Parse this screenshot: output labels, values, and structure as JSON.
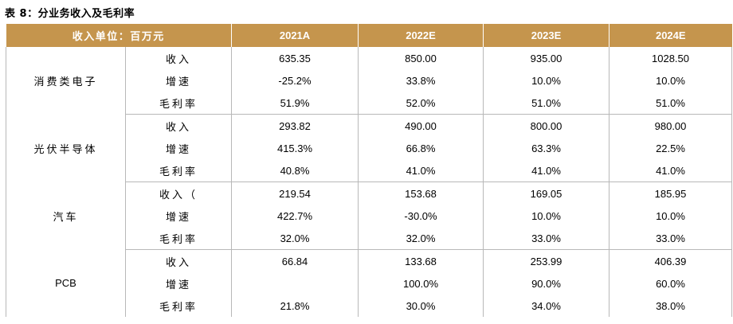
{
  "caption": "表 8：分业务收入及毛利率",
  "header": {
    "unit": "收入单位：百万元",
    "years": [
      "2021A",
      "2022E",
      "2023E",
      "2024E"
    ]
  },
  "segments": [
    {
      "name": "消费类电子",
      "rows": [
        {
          "metric": "收入",
          "values": [
            "635.35",
            "850.00",
            "935.00",
            "1028.50"
          ]
        },
        {
          "metric": "增速",
          "values": [
            "-25.2%",
            "33.8%",
            "10.0%",
            "10.0%"
          ]
        },
        {
          "metric": "毛利率",
          "values": [
            "51.9%",
            "52.0%",
            "51.0%",
            "51.0%"
          ]
        }
      ]
    },
    {
      "name": "光伏半导体",
      "rows": [
        {
          "metric": "收入",
          "values": [
            "293.82",
            "490.00",
            "800.00",
            "980.00"
          ]
        },
        {
          "metric": "增速",
          "values": [
            "415.3%",
            "66.8%",
            "63.3%",
            "22.5%"
          ]
        },
        {
          "metric": "毛利率",
          "values": [
            "40.8%",
            "41.0%",
            "41.0%",
            "41.0%"
          ]
        }
      ]
    },
    {
      "name": "汽车",
      "rows": [
        {
          "metric": "收入（",
          "values": [
            "219.54",
            "153.68",
            "169.05",
            "185.95"
          ]
        },
        {
          "metric": "增速",
          "values": [
            "422.7%",
            "-30.0%",
            "10.0%",
            "10.0%"
          ]
        },
        {
          "metric": "毛利率",
          "values": [
            "32.0%",
            "32.0%",
            "33.0%",
            "33.0%"
          ]
        }
      ]
    },
    {
      "name": "PCB",
      "rows": [
        {
          "metric": "收入",
          "values": [
            "66.84",
            "133.68",
            "253.99",
            "406.39"
          ]
        },
        {
          "metric": "增速",
          "values": [
            "",
            "100.0%",
            "90.0%",
            "60.0%"
          ]
        },
        {
          "metric": "毛利率",
          "values": [
            "21.8%",
            "30.0%",
            "34.0%",
            "38.0%"
          ]
        }
      ]
    }
  ]
}
